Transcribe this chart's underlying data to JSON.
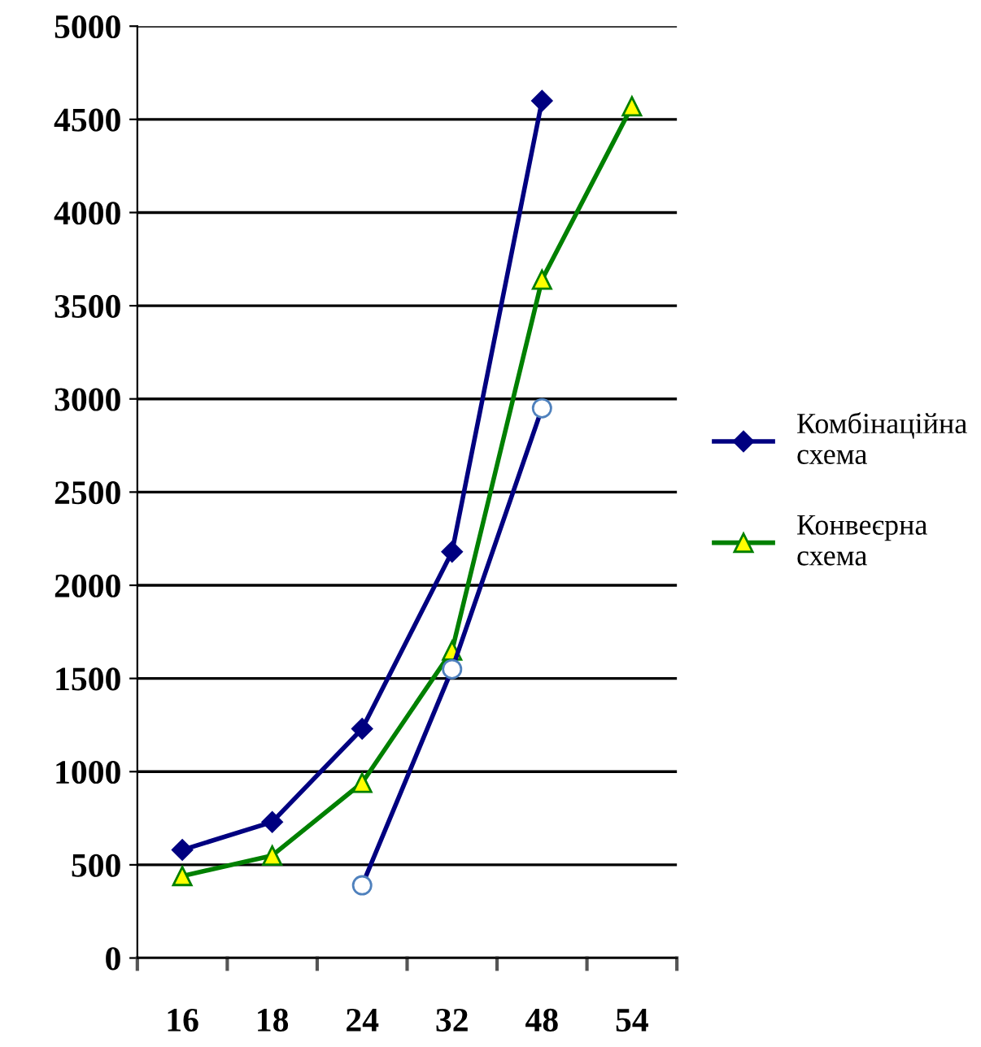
{
  "chart_data": {
    "type": "line",
    "categories": [
      "16",
      "18",
      "24",
      "32",
      "48",
      "54"
    ],
    "series": [
      {
        "name": "Комбінаційна схема",
        "color": "#000080",
        "marker": "diamond",
        "values": [
          580,
          730,
          1230,
          2180,
          4600,
          null
        ]
      },
      {
        "name": "Конвеєрна схема",
        "color": "#008000",
        "marker": "triangle",
        "values": [
          440,
          550,
          940,
          1650,
          3640,
          4570
        ]
      },
      {
        "color": "#000080",
        "marker": "circle",
        "values": [
          null,
          null,
          390,
          1550,
          2950,
          null
        ]
      }
    ],
    "ylim": [
      0,
      5000
    ],
    "yticks": [
      0,
      500,
      1000,
      1500,
      2000,
      2500,
      3000,
      3500,
      4000,
      4500,
      5000
    ],
    "grid": "y",
    "legend": "right"
  }
}
